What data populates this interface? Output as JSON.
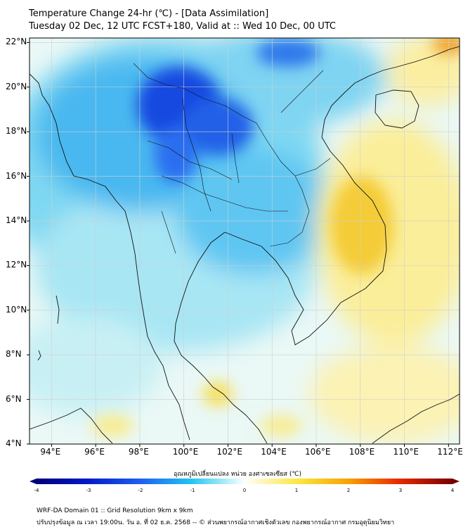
{
  "header": {
    "title": "Temperature Change 24-hr (℃) - [Data Assimilation]",
    "subtitle": "Tuesday 02 Dec, 12 UTC FCST+180, Valid at :: Wed 10 Dec, 00 UTC"
  },
  "map": {
    "lon_labels": [
      "94°E",
      "96°E",
      "98°E",
      "100°E",
      "102°E",
      "104°E",
      "106°E",
      "108°E",
      "110°E",
      "112°E"
    ],
    "lat_labels": [
      "22°N",
      "20°N",
      "18°N",
      "16°N",
      "14°N",
      "12°N",
      "10°N",
      "8°N",
      "6°N",
      "4°N"
    ],
    "lon_range": [
      93,
      112.5
    ],
    "lat_range": [
      4,
      22.2
    ]
  },
  "colorbar": {
    "title": "อุณหภูมิเปลี่ยนแปลง หน่วย องศาเซลเซียส (℃)",
    "ticks": [
      "-4",
      "-3",
      "-2",
      "-1",
      "0",
      "1",
      "2",
      "3",
      "4"
    ],
    "range": [
      -4,
      4
    ]
  },
  "footer": {
    "line1": "WRF-DA Domain 01 :: Grid Resolution 9km x 9km",
    "line2": "ปรับปรุงข้อมูล ณ เวลา 19:00น. วัน อ. ที่ 02 ธ.ค. 2568 -- © ส่วนพยากรณ์อากาศเชิงตัวเลข กองพยากรณ์อากาศ กรมอุตุนิยมวิทยา"
  }
}
